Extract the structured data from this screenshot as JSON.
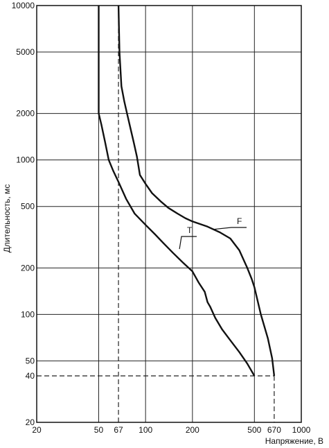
{
  "chart_data": {
    "type": "line",
    "xlabel": "Напряжение, В",
    "ylabel": "Длительность, мс",
    "x_scale": "log",
    "y_scale": "log",
    "xlim": [
      20,
      1000
    ],
    "ylim": [
      20,
      10000
    ],
    "x_ticks": [
      20,
      50,
      67,
      100,
      200,
      500,
      670,
      1000
    ],
    "x_tick_labels": [
      "20",
      "50",
      "67",
      "100",
      "200",
      "500",
      "670",
      "1000"
    ],
    "y_ticks": [
      20,
      40,
      50,
      100,
      200,
      500,
      1000,
      2000,
      5000,
      10000
    ],
    "y_tick_labels": [
      "20",
      "40",
      "50",
      "100",
      "200",
      "500",
      "1000",
      "2000",
      "5000",
      "10000"
    ],
    "grid": true,
    "reference_lines": [
      {
        "kind": "vertical",
        "x": 67,
        "y_range": [
          20,
          10000
        ],
        "style": "dashed"
      },
      {
        "kind": "horizontal",
        "y": 40,
        "x_range": [
          20,
          670
        ],
        "style": "dashed"
      },
      {
        "kind": "vertical",
        "x": 670,
        "y_range": [
          20,
          40
        ],
        "style": "dashed"
      }
    ],
    "series": [
      {
        "name": "T",
        "points": [
          [
            50,
            10000
          ],
          [
            50,
            5000
          ],
          [
            50,
            2000
          ],
          [
            52,
            1700
          ],
          [
            55,
            1300
          ],
          [
            58,
            1000
          ],
          [
            62,
            850
          ],
          [
            67,
            720
          ],
          [
            75,
            560
          ],
          [
            85,
            450
          ],
          [
            100,
            380
          ],
          [
            115,
            330
          ],
          [
            130,
            290
          ],
          [
            150,
            250
          ],
          [
            175,
            215
          ],
          [
            200,
            190
          ],
          [
            220,
            160
          ],
          [
            240,
            140
          ],
          [
            250,
            120
          ],
          [
            260,
            112
          ],
          [
            280,
            95
          ],
          [
            310,
            80
          ],
          [
            350,
            68
          ],
          [
            400,
            57
          ],
          [
            450,
            48
          ],
          [
            500,
            40
          ]
        ]
      },
      {
        "name": "F",
        "points": [
          [
            67,
            10000
          ],
          [
            67.5,
            7000
          ],
          [
            68,
            5000
          ],
          [
            70,
            3000
          ],
          [
            73,
            2400
          ],
          [
            76,
            2000
          ],
          [
            80,
            1600
          ],
          [
            84,
            1300
          ],
          [
            88,
            1050
          ],
          [
            92,
            800
          ],
          [
            100,
            700
          ],
          [
            110,
            610
          ],
          [
            125,
            540
          ],
          [
            140,
            490
          ],
          [
            160,
            450
          ],
          [
            180,
            420
          ],
          [
            200,
            400
          ],
          [
            250,
            370
          ],
          [
            300,
            340
          ],
          [
            350,
            310
          ],
          [
            400,
            260
          ],
          [
            450,
            200
          ],
          [
            480,
            170
          ],
          [
            500,
            150
          ],
          [
            550,
            100
          ],
          [
            610,
            70
          ],
          [
            650,
            52
          ],
          [
            670,
            40
          ]
        ]
      }
    ]
  }
}
